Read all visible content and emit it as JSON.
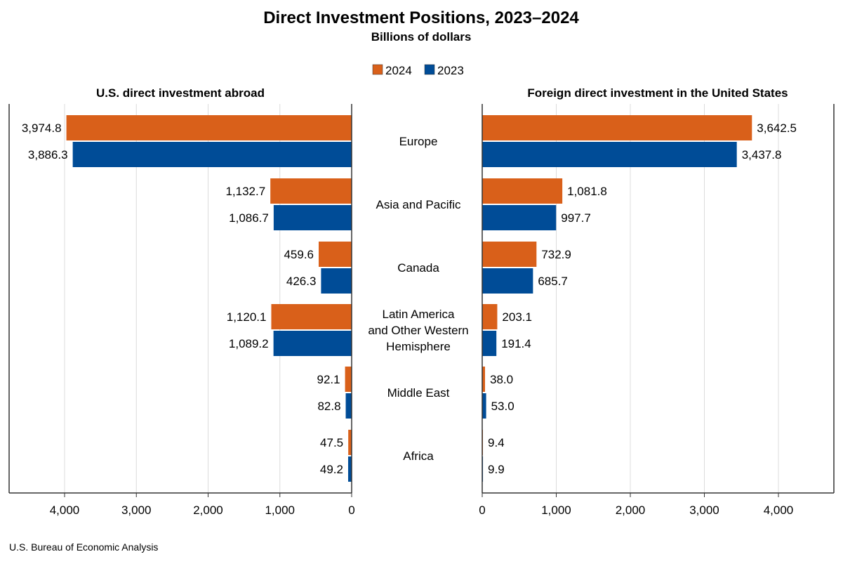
{
  "chart_data": {
    "type": "bar",
    "orientation": "horizontal",
    "title": "Direct Investment Positions, 2023–2024",
    "subtitle": "Billions of dollars",
    "source": "U.S. Bureau of Economic Analysis",
    "legend": {
      "placement": "top-center",
      "entries": [
        "2024",
        "2023"
      ]
    },
    "colors": {
      "2024": "#D9601A",
      "2023": "#004C97"
    },
    "grid": true,
    "categories": [
      "Europe",
      "Asia and Pacific",
      "Canada",
      "Latin America and Other Western Hemisphere",
      "Middle East",
      "Africa"
    ],
    "category_lines": [
      [
        "Europe"
      ],
      [
        "Asia and Pacific"
      ],
      [
        "Canada"
      ],
      [
        "Latin America",
        "and Other Western",
        "Hemisphere"
      ],
      [
        "Middle East"
      ],
      [
        "Africa"
      ]
    ],
    "panels": [
      {
        "title": "U.S. direct investment abroad",
        "direction": "reversed",
        "xlim": [
          0,
          4770
        ],
        "ticks": [
          0,
          1000,
          2000,
          3000,
          4000
        ],
        "tick_labels": [
          "0",
          "1,000",
          "2,000",
          "3,000",
          "4,000"
        ],
        "series": [
          {
            "name": "2024",
            "values": [
              3974.8,
              1132.7,
              459.6,
              1120.1,
              92.1,
              47.5
            ],
            "labels": [
              "3,974.8",
              "1,132.7",
              "459.6",
              "1,120.1",
              "92.1",
              "47.5"
            ]
          },
          {
            "name": "2023",
            "values": [
              3886.3,
              1086.7,
              426.3,
              1089.2,
              82.8,
              49.2
            ],
            "labels": [
              "3,886.3",
              "1,086.7",
              "426.3",
              "1,089.2",
              "82.8",
              "49.2"
            ]
          }
        ]
      },
      {
        "title": "Foreign direct investment in the United States",
        "direction": "normal",
        "xlim": [
          0,
          4750
        ],
        "ticks": [
          0,
          1000,
          2000,
          3000,
          4000
        ],
        "tick_labels": [
          "0",
          "1,000",
          "2,000",
          "3,000",
          "4,000"
        ],
        "series": [
          {
            "name": "2024",
            "values": [
              3642.5,
              1081.8,
              732.9,
              203.1,
              38.0,
              9.4
            ],
            "labels": [
              "3,642.5",
              "1,081.8",
              "732.9",
              "203.1",
              "38.0",
              "9.4"
            ]
          },
          {
            "name": "2023",
            "values": [
              3437.8,
              997.7,
              685.7,
              191.4,
              53.0,
              9.9
            ],
            "labels": [
              "3,437.8",
              "997.7",
              "685.7",
              "191.4",
              "53.0",
              "9.9"
            ]
          }
        ]
      }
    ]
  }
}
